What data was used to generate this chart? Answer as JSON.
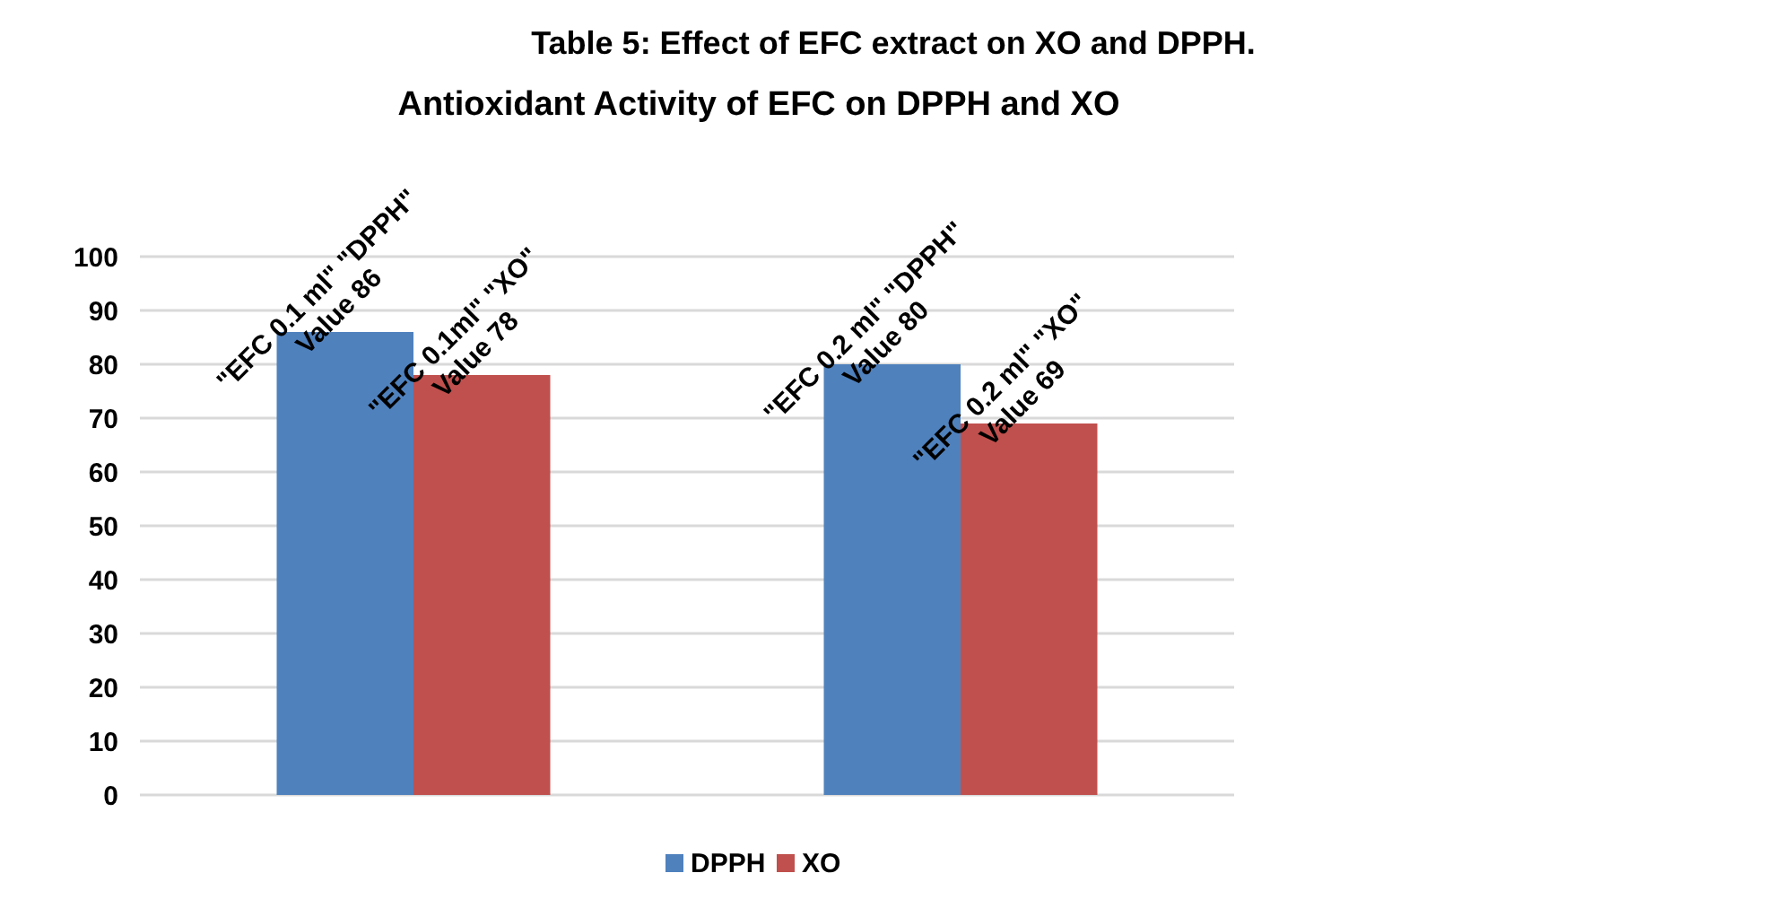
{
  "chart_data": {
    "type": "bar",
    "title": "Table 5: Effect of EFC extract on XO and DPPH.",
    "subtitle": "Antioxidant Activity of EFC on DPPH and XO",
    "categories": [
      null,
      null
    ],
    "series": [
      {
        "name": "DPPH",
        "color": "#4f81bd",
        "values": [
          86,
          80
        ],
        "value_labels": [
          "\"EFC 0.1 ml\" \"DPPH\" Value 86",
          "\"EFC 0.2 ml\" \"DPPH\" Value 80"
        ]
      },
      {
        "name": "XO",
        "color": "#c0504d",
        "values": [
          78,
          69
        ],
        "value_labels": [
          "\"EFC 0.1ml\" \"XO\" Value 78",
          "\"EFC 0.2 ml\" \"XO\" Value 69"
        ]
      }
    ],
    "ylim": [
      0,
      100
    ],
    "yticks": [
      0,
      10,
      20,
      30,
      40,
      50,
      60,
      70,
      80,
      90,
      100
    ],
    "grid": "y",
    "legend": "bottom"
  }
}
